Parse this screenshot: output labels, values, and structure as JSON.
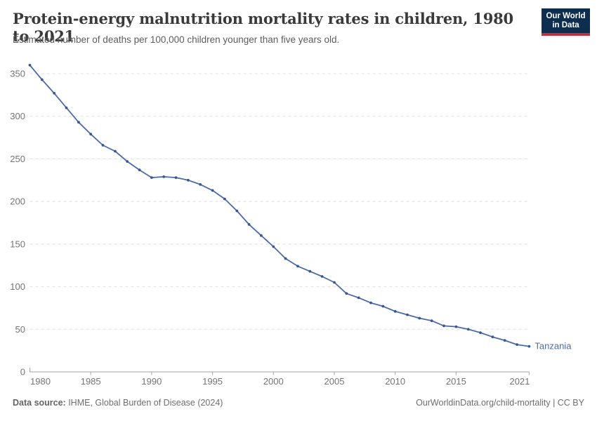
{
  "header": {
    "title": "Protein-energy malnutrition mortality rates in children, 1980 to 2021",
    "subtitle": "Estimated number of deaths per 100,000 children younger than five years old."
  },
  "logo": {
    "line1": "Our World",
    "line2": "in Data",
    "bg_color": "#0d2e4e",
    "accent_color": "#c2303c"
  },
  "footer": {
    "source_label": "Data source:",
    "source_text": " IHME, Global Burden of Disease (2024)",
    "link_text": "OurWorldinData.org/child-mortality | CC BY"
  },
  "chart_data": {
    "type": "line",
    "title": "Protein-energy malnutrition mortality rates in children, 1980 to 2021",
    "xlabel": "",
    "ylabel": "Estimated deaths per 100,000 children under five",
    "x": [
      1980,
      1981,
      1982,
      1983,
      1984,
      1985,
      1986,
      1987,
      1988,
      1989,
      1990,
      1991,
      1992,
      1993,
      1994,
      1995,
      1996,
      1997,
      1998,
      1999,
      2000,
      2001,
      2002,
      2003,
      2004,
      2005,
      2006,
      2007,
      2008,
      2009,
      2010,
      2011,
      2012,
      2013,
      2014,
      2015,
      2016,
      2017,
      2018,
      2019,
      2020,
      2021
    ],
    "series": [
      {
        "name": "Tanzania",
        "color": "#4C6BA6",
        "marker_color": "#3A5795",
        "values": [
          360,
          343,
          327,
          310,
          293,
          279,
          266,
          259,
          247,
          237,
          228,
          229,
          228,
          225,
          220,
          213,
          203,
          189,
          173,
          160,
          147,
          133,
          124,
          118,
          112,
          105,
          92,
          87,
          81,
          77,
          71,
          67,
          63,
          60,
          54,
          53,
          50,
          46,
          41,
          37,
          32,
          30
        ]
      }
    ],
    "ylim": [
      0,
      350
    ],
    "yticks": [
      0,
      50,
      100,
      150,
      200,
      250,
      300,
      350
    ],
    "xticks": [
      1980,
      1985,
      1990,
      1995,
      2000,
      2005,
      2010,
      2015,
      2021
    ],
    "grid": "dashed-horizontal",
    "legend_position": "end-of-line",
    "grid_color": "#dddddd",
    "axis_color": "#a3a3a3",
    "tick_label_color": "#737373"
  }
}
